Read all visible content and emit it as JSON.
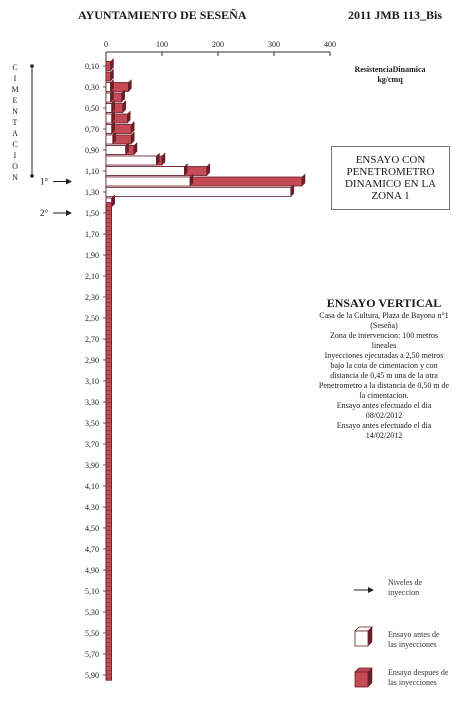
{
  "header": {
    "left_title": "AYUNTAMIENTO DE SESEÑA",
    "right_title": "2011 JMB 113_Bis"
  },
  "side_label": "CIMENTACION",
  "legend_title_lines": [
    "ResistenciaDinamica",
    "kg/cmq"
  ],
  "zone_box_lines": [
    "ENSAYO CON",
    "PENETROMETRO",
    "DINAMICO EN LA",
    "ZONA 1"
  ],
  "info": {
    "title": "ENSAYO VERTICAL",
    "lines": [
      "Casa de la Cultura, Plaza de Bayona n°1 (Seseña)",
      "Zona de intervencion: 100 metros lineales",
      "Inyecciones ejecutadas a 2,50 metros bajo la cota de cimentacion y con distancia de 0,45 m una de la otra",
      "Penetrometro a la distancia de 0,50 m de la cimentacion.",
      "Ensayo antes efectuado el dia 08/02/2012",
      "Ensayo antes efectuado el dia 14/02/2012"
    ]
  },
  "legend": {
    "arrow_label": "Niveles de inyeccion",
    "before_label": "Ensayo antes de las inyecciones",
    "after_label": "Ensayo despues de las inyecciones"
  },
  "markers": [
    {
      "label": "1°",
      "depth": "1,20"
    },
    {
      "label": "2°",
      "depth": "1,50"
    }
  ],
  "colors": {
    "before_fill": "#ffffff",
    "after_fill": "#c44a55",
    "edge": "#6b1f28",
    "axis": "#333333"
  },
  "chart_data": {
    "type": "bar",
    "orientation": "horizontal",
    "xlim": [
      0,
      400
    ],
    "x_ticks": [
      "0",
      "100",
      "200",
      "300",
      "400"
    ],
    "categories": [
      "0,10",
      "0,30",
      "0,50",
      "0,70",
      "0,90",
      "1,10",
      "1,30",
      "1,50",
      "1,70",
      "1,90",
      "2,10",
      "2,30",
      "2,50",
      "2,70",
      "2,90",
      "3,10",
      "3,30",
      "3,50",
      "3,70",
      "3,90",
      "4,10",
      "4,30",
      "4,50",
      "4,70",
      "4,90",
      "5,10",
      "5,30",
      "5,50",
      "5,70",
      "5,90"
    ],
    "bars": [
      {
        "depth": 0.1,
        "before": 0,
        "after": 8
      },
      {
        "depth": 0.2,
        "before": 0,
        "after": 8
      },
      {
        "depth": 0.3,
        "before": 8,
        "after": 40
      },
      {
        "depth": 0.4,
        "before": 8,
        "after": 28
      },
      {
        "depth": 0.5,
        "before": 10,
        "after": 30
      },
      {
        "depth": 0.6,
        "before": 10,
        "after": 38
      },
      {
        "depth": 0.7,
        "before": 10,
        "after": 45
      },
      {
        "depth": 0.8,
        "before": 12,
        "after": 45
      },
      {
        "depth": 0.9,
        "before": 35,
        "after": 50
      },
      {
        "depth": 1.0,
        "before": 90,
        "after": 100
      },
      {
        "depth": 1.1,
        "before": 140,
        "after": 180
      },
      {
        "depth": 1.2,
        "before": 150,
        "after": 350
      },
      {
        "depth": 1.3,
        "before": 330,
        "after": 0
      },
      {
        "depth": 1.4,
        "before": 10,
        "after": 10
      }
    ],
    "stem": {
      "from_depth": 1.4,
      "to_depth": 5.95,
      "value": 10
    }
  }
}
